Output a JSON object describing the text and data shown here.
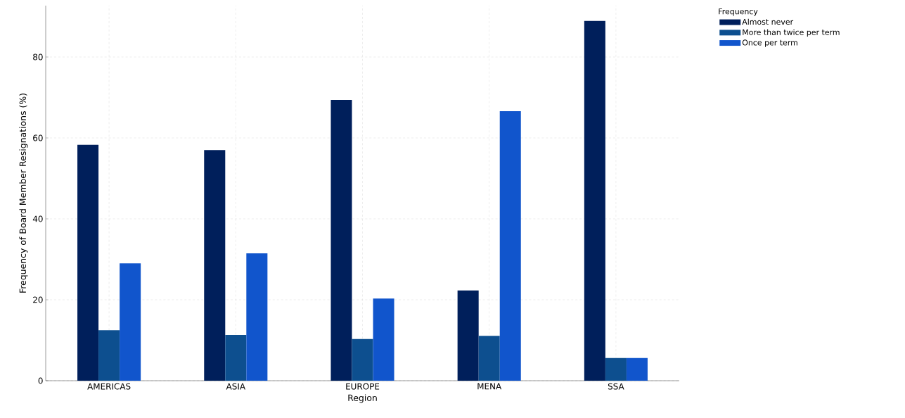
{
  "chart_data": {
    "type": "bar",
    "xlabel": "Region",
    "ylabel": "Frequency of Board Member Resignations (%)",
    "legend_title": "Frequency",
    "categories": [
      "AMERICAS",
      "ASIA",
      "EUROPE",
      "MENA",
      "SSA"
    ],
    "series": [
      {
        "name": "Almost never",
        "color": "#001f5b",
        "values": [
          58.3,
          57.0,
          69.4,
          22.3,
          88.9
        ]
      },
      {
        "name": "More than twice per term",
        "color": "#0d4f8f",
        "values": [
          12.5,
          11.3,
          10.3,
          11.1,
          5.6
        ]
      },
      {
        "name": "Once per term",
        "color": "#1155cc",
        "values": [
          29.0,
          31.5,
          20.3,
          66.6,
          5.6
        ]
      }
    ],
    "ylim": [
      0,
      92.7
    ],
    "yticks": [
      0,
      20,
      40,
      60,
      80
    ],
    "grid": true,
    "legend": "top right"
  }
}
